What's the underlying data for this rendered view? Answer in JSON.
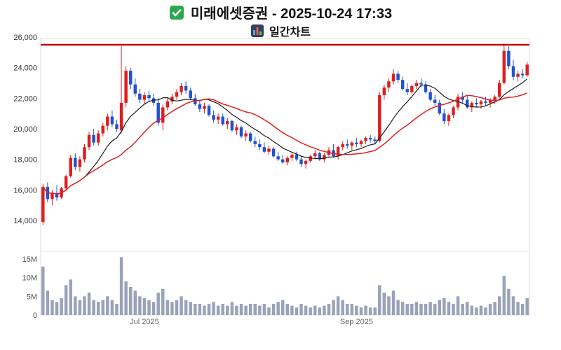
{
  "header": {
    "title": "미래에셋증권 - 2025-10-24 17:33",
    "subtitle": "일간차트"
  },
  "chart_data": {
    "type": "candlestick",
    "title": "미래에셋증권 - 2025-10-24 17:33",
    "subtitle": "일간차트",
    "y_axis": {
      "range": [
        12200,
        26400
      ],
      "ticks": [
        {
          "v": 26000,
          "label": "26,000"
        },
        {
          "v": 24000,
          "label": "24,000"
        },
        {
          "v": 22000,
          "label": "22,000"
        },
        {
          "v": 20000,
          "label": "20,000"
        },
        {
          "v": 18000,
          "label": "18,000"
        },
        {
          "v": 16000,
          "label": "16,000"
        },
        {
          "v": 14000,
          "label": "14,000"
        }
      ]
    },
    "volume_axis": {
      "unit": "M",
      "range": [
        0,
        16.5
      ],
      "ticks": [
        {
          "v": 15,
          "label": "15M"
        },
        {
          "v": 10,
          "label": "10M"
        },
        {
          "v": 5,
          "label": "5M"
        },
        {
          "v": 0,
          "label": "0"
        }
      ]
    },
    "x_ticks": [
      {
        "index": 22,
        "label": "Jul 2025"
      },
      {
        "index": 68,
        "label": "Sep 2025"
      }
    ],
    "resistance_line": {
      "value": 25500,
      "color": "#c00000"
    },
    "moving_averages": [
      {
        "period": 10,
        "color": "#1a1a1a",
        "width": 1.2
      },
      {
        "period": 20,
        "color": "#e01f1f",
        "width": 1.5
      }
    ],
    "colors": {
      "up": "#dd1f1f",
      "down": "#2153cc",
      "volume": "#99a2b9"
    },
    "candles": [
      [
        13900,
        16400,
        13700,
        16200
      ],
      [
        16200,
        16500,
        15200,
        15400
      ],
      [
        15400,
        16000,
        15000,
        15800
      ],
      [
        15800,
        16300,
        15300,
        15500
      ],
      [
        15500,
        16200,
        15400,
        16100
      ],
      [
        16100,
        17000,
        16000,
        16900
      ],
      [
        16900,
        18300,
        16800,
        18100
      ],
      [
        18100,
        18400,
        17300,
        17500
      ],
      [
        17500,
        18200,
        17200,
        18000
      ],
      [
        18000,
        19000,
        17800,
        18800
      ],
      [
        18800,
        19800,
        18600,
        19600
      ],
      [
        19600,
        20000,
        18900,
        19100
      ],
      [
        19100,
        19900,
        18900,
        19700
      ],
      [
        19700,
        20400,
        19500,
        20200
      ],
      [
        20200,
        21000,
        19900,
        20800
      ],
      [
        20800,
        21200,
        20100,
        20300
      ],
      [
        20300,
        20600,
        19800,
        20000
      ],
      [
        19900,
        25400,
        19700,
        21700
      ],
      [
        21700,
        24100,
        21400,
        23800
      ],
      [
        23800,
        24000,
        22600,
        22900
      ],
      [
        22900,
        23300,
        22100,
        22300
      ],
      [
        22300,
        22600,
        21700,
        21900
      ],
      [
        21900,
        22400,
        21600,
        22200
      ],
      [
        22200,
        22500,
        21800,
        22000
      ],
      [
        22000,
        22300,
        21500,
        21700
      ],
      [
        21700,
        22000,
        20200,
        20400
      ],
      [
        20400,
        21600,
        19900,
        21400
      ],
      [
        21400,
        22000,
        21200,
        21800
      ],
      [
        21800,
        22300,
        21600,
        22100
      ],
      [
        22100,
        22600,
        21900,
        22400
      ],
      [
        22400,
        23000,
        22200,
        22800
      ],
      [
        22800,
        23100,
        22300,
        22500
      ],
      [
        22500,
        22700,
        21900,
        22000
      ],
      [
        22000,
        22300,
        21500,
        21600
      ],
      [
        21600,
        21900,
        21100,
        21300
      ],
      [
        21300,
        21700,
        21000,
        21500
      ],
      [
        21500,
        21600,
        20800,
        20900
      ],
      [
        20900,
        21200,
        20400,
        20600
      ],
      [
        20600,
        21000,
        20300,
        20800
      ],
      [
        20800,
        21000,
        20200,
        20300
      ],
      [
        20300,
        20700,
        20000,
        20500
      ],
      [
        20500,
        20600,
        19800,
        19900
      ],
      [
        19900,
        20300,
        19600,
        20100
      ],
      [
        20100,
        20200,
        19400,
        19500
      ],
      [
        19500,
        19900,
        19200,
        19700
      ],
      [
        19700,
        19800,
        19100,
        19200
      ],
      [
        19200,
        19500,
        18800,
        19000
      ],
      [
        19000,
        19300,
        18600,
        18800
      ],
      [
        18800,
        19100,
        18400,
        18500
      ],
      [
        18500,
        18900,
        18300,
        18700
      ],
      [
        18700,
        18800,
        18100,
        18200
      ],
      [
        18200,
        18500,
        17900,
        18000
      ],
      [
        18000,
        18300,
        17700,
        17800
      ],
      [
        17800,
        18200,
        17600,
        18100
      ],
      [
        18100,
        18400,
        17900,
        18300
      ],
      [
        18300,
        18500,
        17900,
        18000
      ],
      [
        18000,
        18200,
        17500,
        17700
      ],
      [
        17700,
        18000,
        17400,
        17900
      ],
      [
        17900,
        18300,
        17800,
        18200
      ],
      [
        18200,
        18600,
        18000,
        18400
      ],
      [
        18400,
        18500,
        17900,
        18000
      ],
      [
        18000,
        18400,
        17800,
        18300
      ],
      [
        18300,
        18800,
        18200,
        18600
      ],
      [
        18600,
        19000,
        18100,
        18200
      ],
      [
        18200,
        18900,
        18000,
        18800
      ],
      [
        18800,
        19200,
        18600,
        19000
      ],
      [
        19000,
        19300,
        18700,
        18900
      ],
      [
        18900,
        19200,
        18600,
        19100
      ],
      [
        19100,
        19400,
        18800,
        19000
      ],
      [
        19000,
        19300,
        18800,
        19200
      ],
      [
        19200,
        19500,
        19000,
        19400
      ],
      [
        19400,
        19600,
        19100,
        19300
      ],
      [
        19300,
        19500,
        19000,
        19200
      ],
      [
        19200,
        22400,
        19100,
        22200
      ],
      [
        22200,
        22900,
        21900,
        22700
      ],
      [
        22700,
        23300,
        22400,
        23100
      ],
      [
        23100,
        23900,
        22900,
        23600
      ],
      [
        23600,
        23800,
        23000,
        23200
      ],
      [
        23200,
        23400,
        22500,
        22600
      ],
      [
        22600,
        23000,
        22200,
        22400
      ],
      [
        22400,
        22900,
        22300,
        22800
      ],
      [
        22800,
        23200,
        22600,
        23000
      ],
      [
        23000,
        23300,
        22700,
        22900
      ],
      [
        22900,
        23100,
        22300,
        22400
      ],
      [
        22400,
        22600,
        21800,
        21900
      ],
      [
        21900,
        22200,
        21500,
        21700
      ],
      [
        21700,
        21900,
        20900,
        21000
      ],
      [
        21000,
        21300,
        20300,
        20500
      ],
      [
        20500,
        21000,
        20200,
        20900
      ],
      [
        20900,
        21500,
        20700,
        21400
      ],
      [
        21400,
        22300,
        21200,
        22100
      ],
      [
        22100,
        22400,
        21700,
        21900
      ],
      [
        21900,
        22200,
        21300,
        21400
      ],
      [
        21400,
        21800,
        21100,
        21700
      ],
      [
        21700,
        22000,
        21400,
        21600
      ],
      [
        21600,
        21900,
        21300,
        21800
      ],
      [
        21800,
        22100,
        21500,
        21700
      ],
      [
        21700,
        22000,
        21400,
        21900
      ],
      [
        21900,
        22200,
        21600,
        22100
      ],
      [
        22100,
        23200,
        22000,
        23000
      ],
      [
        23000,
        25500,
        22900,
        25100
      ],
      [
        25100,
        25400,
        23900,
        24100
      ],
      [
        24100,
        24500,
        23200,
        23400
      ],
      [
        23400,
        23800,
        23100,
        23600
      ],
      [
        23600,
        23900,
        23300,
        23500
      ],
      [
        23500,
        24400,
        23400,
        24200
      ]
    ],
    "volumes_m": [
      13,
      6.5,
      4,
      3.5,
      4.5,
      8,
      9.5,
      5,
      4,
      5,
      6,
      4,
      3.5,
      4,
      5,
      4,
      3,
      15.5,
      9,
      7.5,
      6.5,
      5,
      4.5,
      4,
      3.5,
      6,
      7,
      4,
      3.5,
      4,
      5,
      4,
      3.5,
      3,
      3,
      2.5,
      3,
      3.5,
      2.5,
      3,
      2.5,
      3.5,
      2.5,
      3,
      2.5,
      3,
      3,
      2.5,
      3,
      2,
      3,
      3.5,
      4,
      3,
      2.5,
      2,
      3,
      2.5,
      2,
      2.5,
      2,
      2.5,
      3,
      4,
      5,
      4,
      3,
      3,
      2.5,
      2,
      2.5,
      2,
      2,
      8,
      6,
      5,
      6.5,
      4,
      3.5,
      3,
      3,
      3.5,
      3,
      3,
      3.5,
      3,
      4,
      4.5,
      3.5,
      3,
      5,
      3,
      3.5,
      2.5,
      2,
      2.5,
      2,
      3,
      3.5,
      5,
      10.5,
      7,
      5,
      3.5,
      3,
      4.5
    ]
  }
}
